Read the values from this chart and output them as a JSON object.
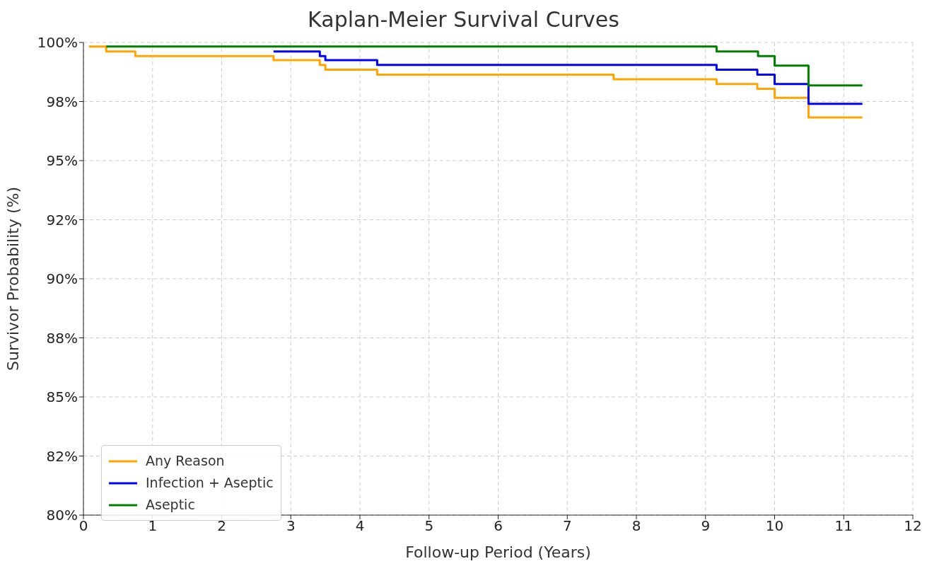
{
  "chart_data": {
    "type": "step",
    "title": "Kaplan-Meier Survival Curves",
    "xlabel": "Follow-up Period (Years)",
    "ylabel": "Survivor Probability (%)",
    "series": [
      {
        "name": "Any Reason",
        "color": "#ffa500",
        "x": [
          0.08,
          0.33,
          0.75,
          2.75,
          3.42,
          3.5,
          4.25,
          7.67,
          9.16,
          9.75,
          10.0,
          10.49,
          11.27
        ],
        "values": [
          99.83,
          99.62,
          99.42,
          99.25,
          99.05,
          98.85,
          98.64,
          98.44,
          98.24,
          98.04,
          97.66,
          96.83,
          96.83
        ]
      },
      {
        "name": "Infection + Aseptic",
        "color": "#0000ff",
        "x": [
          2.75,
          3.42,
          3.5,
          4.25,
          9.16,
          9.75,
          10.0,
          10.49,
          11.27
        ],
        "values": [
          99.62,
          99.42,
          99.25,
          99.05,
          98.85,
          98.64,
          98.24,
          97.4,
          97.4
        ]
      },
      {
        "name": "Aseptic",
        "color": "#008000",
        "x": [
          0.33,
          9.16,
          9.76,
          10.0,
          10.49,
          11.27
        ],
        "values": [
          99.83,
          99.62,
          99.42,
          99.02,
          98.18,
          98.18
        ]
      }
    ],
    "xlim": [
      0,
      12
    ],
    "xticks": [
      0,
      1,
      2,
      3,
      4,
      5,
      6,
      7,
      8,
      9,
      10,
      11,
      12
    ],
    "ylim": [
      80,
      100
    ],
    "yticks": [
      {
        "value": 80,
        "label": "80%"
      },
      {
        "value": 82.5,
        "label": "82%"
      },
      {
        "value": 85,
        "label": "85%"
      },
      {
        "value": 87.5,
        "label": "88%"
      },
      {
        "value": 90,
        "label": "90%"
      },
      {
        "value": 92.5,
        "label": "92%"
      },
      {
        "value": 95,
        "label": "95%"
      },
      {
        "value": 97.5,
        "label": "98%"
      },
      {
        "value": 100,
        "label": "100%"
      }
    ],
    "grid": true,
    "legend": "bottom left",
    "line_style": "solid",
    "marker": "none"
  }
}
